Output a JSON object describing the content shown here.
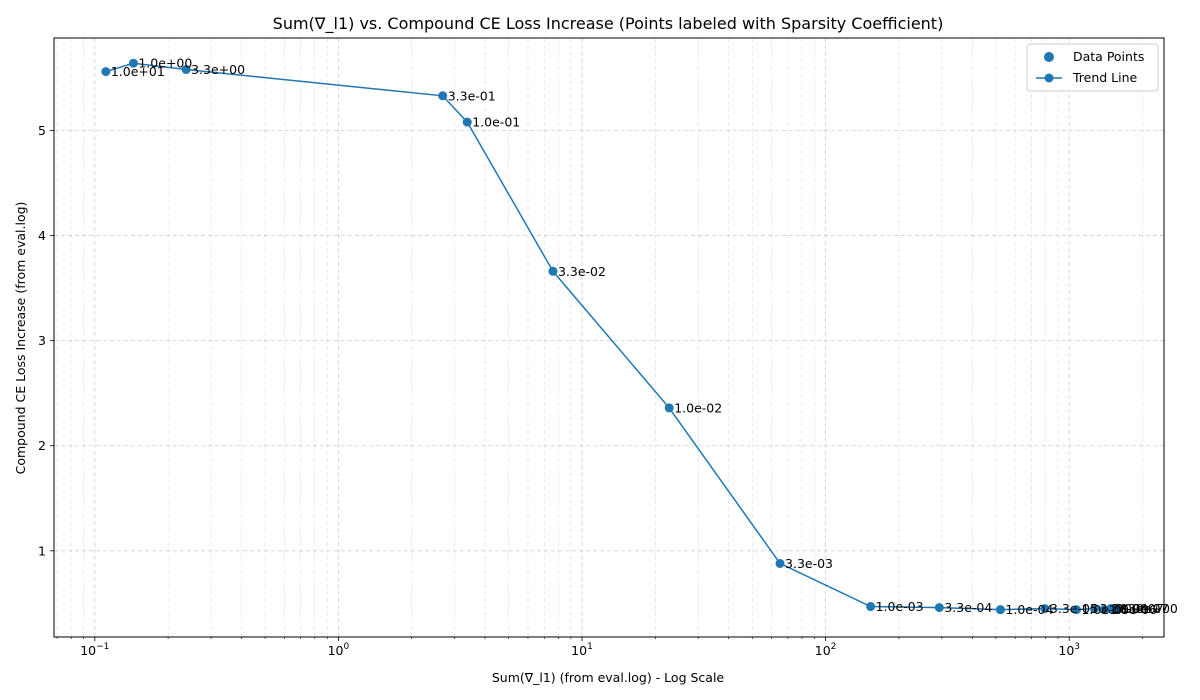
{
  "chart_data": {
    "type": "scatter",
    "title": "Sum(∇_l1) vs. Compound CE Loss Increase (Points labeled with Sparsity Coefficient)",
    "xlabel": "Sum(∇_l1) (from eval.log) - Log Scale",
    "ylabel": "Compound CE Loss Increase (from eval.log)",
    "xscale": "log",
    "xlim": [
      0.068,
      2450
    ],
    "ylim": [
      0.18,
      5.88
    ],
    "grid": true,
    "x_ticks": [
      {
        "value": 0.1,
        "base": "10",
        "exp": "−1"
      },
      {
        "value": 1,
        "base": "10",
        "exp": "0"
      },
      {
        "value": 10,
        "base": "10",
        "exp": "1"
      },
      {
        "value": 100,
        "base": "10",
        "exp": "2"
      },
      {
        "value": 1000,
        "base": "10",
        "exp": "3"
      }
    ],
    "y_ticks": [
      {
        "value": 1,
        "label": "1"
      },
      {
        "value": 2,
        "label": "2"
      },
      {
        "value": 3,
        "label": "3"
      },
      {
        "value": 4,
        "label": "4"
      },
      {
        "value": 5,
        "label": "5"
      }
    ],
    "legend": {
      "position": "top-right",
      "entries": [
        "Data Points",
        "Trend Line"
      ]
    },
    "color": "#1f77b4",
    "points": [
      {
        "x": 0.111,
        "y": 5.56,
        "label": "1.0e+01"
      },
      {
        "x": 0.144,
        "y": 5.64,
        "label": "1.0e+00"
      },
      {
        "x": 0.237,
        "y": 5.58,
        "label": "3.3e+00"
      },
      {
        "x": 2.68,
        "y": 5.33,
        "label": "3.3e-01"
      },
      {
        "x": 3.38,
        "y": 5.08,
        "label": "1.0e-01"
      },
      {
        "x": 7.6,
        "y": 3.66,
        "label": "3.3e-02"
      },
      {
        "x": 22.8,
        "y": 2.36,
        "label": "1.0e-02"
      },
      {
        "x": 65,
        "y": 0.88,
        "label": "3.3e-03"
      },
      {
        "x": 153,
        "y": 0.47,
        "label": "1.0e-03"
      },
      {
        "x": 293,
        "y": 0.46,
        "label": "3.3e-04"
      },
      {
        "x": 522,
        "y": 0.44,
        "label": "1.0e-04"
      },
      {
        "x": 795,
        "y": 0.45,
        "label": "3.3e-05"
      },
      {
        "x": 1070,
        "y": 0.44,
        "label": "1.0e-05"
      },
      {
        "x": 1270,
        "y": 0.45,
        "label": "3.3e-06"
      },
      {
        "x": 1390,
        "y": 0.44,
        "label": "1.0e-06"
      },
      {
        "x": 1480,
        "y": 0.45,
        "label": "3.3e-07"
      },
      {
        "x": 1550,
        "y": 0.45,
        "label": "1.0e-07"
      },
      {
        "x": 1600,
        "y": 0.45,
        "label": "0.0e+00"
      }
    ]
  }
}
